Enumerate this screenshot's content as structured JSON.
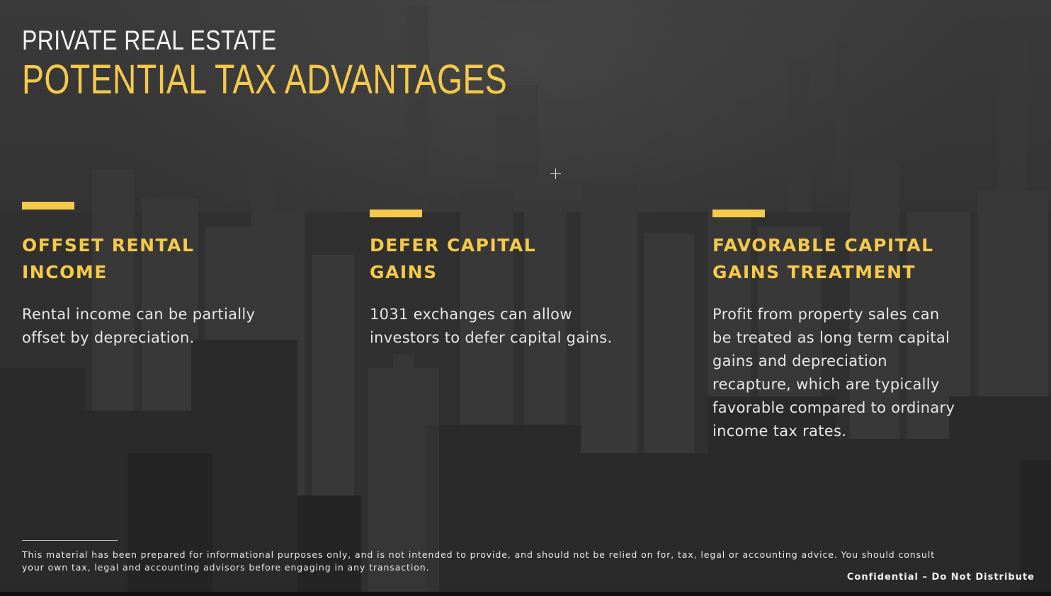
{
  "header": {
    "eyebrow": "PRIVATE REAL ESTATE",
    "title": "POTENTIAL TAX ADVANTAGES"
  },
  "columns": [
    {
      "heading_lines": [
        "OFFSET RENTAL",
        "INCOME"
      ],
      "body_lines": [
        "Rental income can be partially",
        "offset by depreciation."
      ]
    },
    {
      "heading_lines": [
        "DEFER CAPITAL",
        "GAINS"
      ],
      "body_lines": [
        "1031 exchanges can allow",
        "investors to defer capital gains."
      ]
    },
    {
      "heading_lines": [
        "FAVORABLE CAPITAL",
        "GAINS TREATMENT"
      ],
      "body_lines": [
        "Profit from property sales can",
        "be treated as long term capital",
        "gains and depreciation",
        "recapture, which are typically",
        "favorable compared to ordinary",
        "income tax rates."
      ]
    }
  ],
  "footer": {
    "disclaimer_lines": [
      "This material has been prepared for informational purposes only, and is not intended to provide, and should not be relied on for, tax, legal or accounting advice. You should consult",
      "your own tax, legal and accounting advisors before engaging in any transaction."
    ],
    "confidential": "Confidential – Do Not Distribute"
  },
  "colors": {
    "accent": "#f5c94a",
    "text_light": "#e6e6e6",
    "background": "#2b2b2b"
  },
  "icons": {
    "cursor": "crosshair-cursor-icon"
  }
}
